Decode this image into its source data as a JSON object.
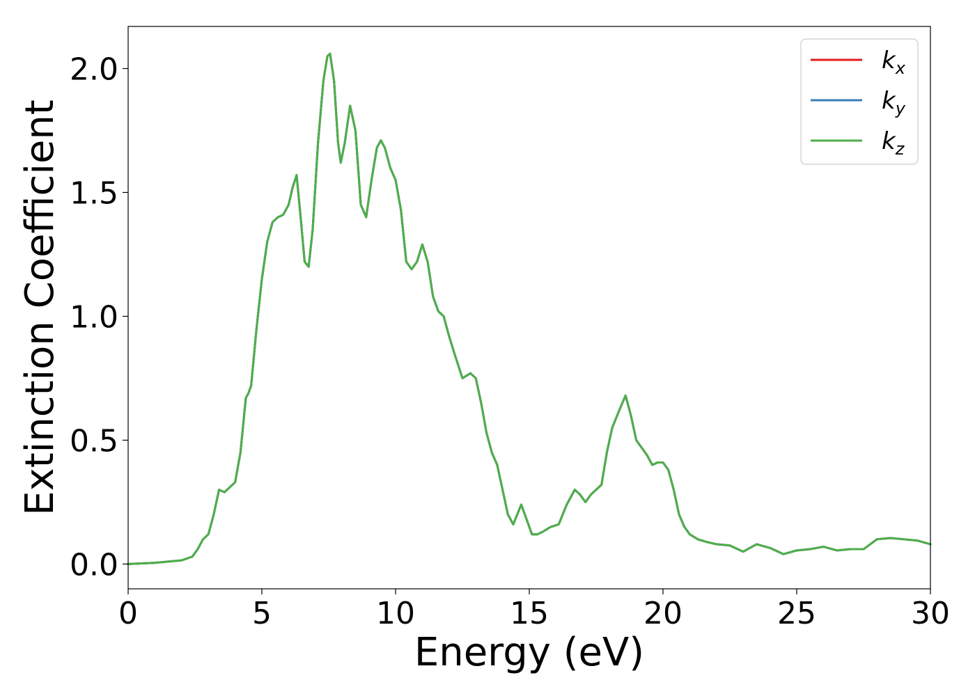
{
  "chart_data": {
    "type": "line",
    "title": "",
    "xlabel": "Energy (eV)",
    "ylabel": "Extinction Coefficient",
    "xlim": [
      0,
      30
    ],
    "ylim": [
      -0.1,
      2.17
    ],
    "xticks": [
      0,
      5,
      10,
      15,
      20,
      25,
      30
    ],
    "xtick_labels": [
      "0",
      "5",
      "10",
      "15",
      "20",
      "25",
      "30"
    ],
    "yticks": [
      0.0,
      0.5,
      1.0,
      1.5,
      2.0
    ],
    "ytick_labels": [
      "0.0",
      "0.5",
      "1.0",
      "1.5",
      "2.0"
    ],
    "grid": false,
    "legend_position": "top-right",
    "series": [
      {
        "name": "k_x",
        "label_base": "k",
        "label_sub": "x",
        "color": "#e41a1c",
        "x": [
          0,
          1,
          2,
          2.4,
          2.6,
          2.8,
          3.0,
          3.2,
          3.4,
          3.6,
          3.8,
          4.0,
          4.2,
          4.4,
          4.5,
          4.6,
          4.8,
          5.0,
          5.2,
          5.4,
          5.6,
          5.8,
          6.0,
          6.15,
          6.3,
          6.45,
          6.6,
          6.75,
          6.9,
          7.1,
          7.3,
          7.45,
          7.55,
          7.7,
          7.85,
          7.95,
          8.1,
          8.3,
          8.5,
          8.7,
          8.9,
          9.1,
          9.3,
          9.45,
          9.6,
          9.8,
          10.0,
          10.2,
          10.4,
          10.6,
          10.8,
          11.0,
          11.2,
          11.4,
          11.6,
          11.8,
          12.0,
          12.2,
          12.5,
          12.8,
          13.0,
          13.2,
          13.4,
          13.6,
          13.8,
          14.0,
          14.2,
          14.4,
          14.7,
          14.9,
          15.1,
          15.3,
          15.5,
          15.8,
          16.1,
          16.4,
          16.7,
          16.9,
          17.1,
          17.3,
          17.5,
          17.7,
          17.9,
          18.1,
          18.4,
          18.6,
          18.8,
          19.0,
          19.2,
          19.4,
          19.6,
          19.8,
          20.0,
          20.2,
          20.4,
          20.6,
          20.8,
          21.0,
          21.3,
          21.6,
          22.0,
          22.5,
          23.0,
          23.5,
          24.0,
          24.5,
          25.0,
          25.5,
          26.0,
          26.5,
          27.0,
          27.5,
          28.0,
          28.5,
          29.0,
          29.5,
          30.0
        ],
        "y": [
          0.0,
          0.005,
          0.015,
          0.03,
          0.06,
          0.1,
          0.12,
          0.2,
          0.3,
          0.29,
          0.31,
          0.33,
          0.45,
          0.67,
          0.69,
          0.72,
          0.95,
          1.15,
          1.3,
          1.38,
          1.4,
          1.41,
          1.45,
          1.52,
          1.57,
          1.4,
          1.22,
          1.2,
          1.35,
          1.7,
          1.95,
          2.05,
          2.06,
          1.95,
          1.7,
          1.62,
          1.7,
          1.85,
          1.75,
          1.45,
          1.4,
          1.55,
          1.68,
          1.71,
          1.68,
          1.6,
          1.55,
          1.43,
          1.22,
          1.19,
          1.22,
          1.29,
          1.22,
          1.08,
          1.02,
          1.0,
          0.92,
          0.85,
          0.75,
          0.77,
          0.75,
          0.65,
          0.53,
          0.45,
          0.4,
          0.3,
          0.2,
          0.16,
          0.24,
          0.18,
          0.12,
          0.12,
          0.13,
          0.15,
          0.16,
          0.24,
          0.3,
          0.28,
          0.25,
          0.28,
          0.3,
          0.32,
          0.45,
          0.55,
          0.63,
          0.68,
          0.6,
          0.5,
          0.47,
          0.44,
          0.4,
          0.41,
          0.41,
          0.38,
          0.3,
          0.2,
          0.15,
          0.12,
          0.1,
          0.09,
          0.08,
          0.075,
          0.05,
          0.08,
          0.065,
          0.04,
          0.055,
          0.06,
          0.07,
          0.055,
          0.06,
          0.06,
          0.1,
          0.105,
          0.1,
          0.095,
          0.08
        ]
      },
      {
        "name": "k_y",
        "label_base": "k",
        "label_sub": "y",
        "color": "#377eb8",
        "x": [
          0,
          1,
          2,
          2.4,
          2.6,
          2.8,
          3.0,
          3.2,
          3.4,
          3.6,
          3.8,
          4.0,
          4.2,
          4.4,
          4.5,
          4.6,
          4.8,
          5.0,
          5.2,
          5.4,
          5.6,
          5.8,
          6.0,
          6.15,
          6.3,
          6.45,
          6.6,
          6.75,
          6.9,
          7.1,
          7.3,
          7.45,
          7.55,
          7.7,
          7.85,
          7.95,
          8.1,
          8.3,
          8.5,
          8.7,
          8.9,
          9.1,
          9.3,
          9.45,
          9.6,
          9.8,
          10.0,
          10.2,
          10.4,
          10.6,
          10.8,
          11.0,
          11.2,
          11.4,
          11.6,
          11.8,
          12.0,
          12.2,
          12.5,
          12.8,
          13.0,
          13.2,
          13.4,
          13.6,
          13.8,
          14.0,
          14.2,
          14.4,
          14.7,
          14.9,
          15.1,
          15.3,
          15.5,
          15.8,
          16.1,
          16.4,
          16.7,
          16.9,
          17.1,
          17.3,
          17.5,
          17.7,
          17.9,
          18.1,
          18.4,
          18.6,
          18.8,
          19.0,
          19.2,
          19.4,
          19.6,
          19.8,
          20.0,
          20.2,
          20.4,
          20.6,
          20.8,
          21.0,
          21.3,
          21.6,
          22.0,
          22.5,
          23.0,
          23.5,
          24.0,
          24.5,
          25.0,
          25.5,
          26.0,
          26.5,
          27.0,
          27.5,
          28.0,
          28.5,
          29.0,
          29.5,
          30.0
        ],
        "y": [
          0.0,
          0.005,
          0.015,
          0.03,
          0.06,
          0.1,
          0.12,
          0.2,
          0.3,
          0.29,
          0.31,
          0.33,
          0.45,
          0.67,
          0.69,
          0.72,
          0.95,
          1.15,
          1.3,
          1.38,
          1.4,
          1.41,
          1.45,
          1.52,
          1.57,
          1.4,
          1.22,
          1.2,
          1.35,
          1.7,
          1.95,
          2.05,
          2.06,
          1.95,
          1.7,
          1.62,
          1.7,
          1.85,
          1.75,
          1.45,
          1.4,
          1.55,
          1.68,
          1.71,
          1.68,
          1.6,
          1.55,
          1.43,
          1.22,
          1.19,
          1.22,
          1.29,
          1.22,
          1.08,
          1.02,
          1.0,
          0.92,
          0.85,
          0.75,
          0.77,
          0.75,
          0.65,
          0.53,
          0.45,
          0.4,
          0.3,
          0.2,
          0.16,
          0.24,
          0.18,
          0.12,
          0.12,
          0.13,
          0.15,
          0.16,
          0.24,
          0.3,
          0.28,
          0.25,
          0.28,
          0.3,
          0.32,
          0.45,
          0.55,
          0.63,
          0.68,
          0.6,
          0.5,
          0.47,
          0.44,
          0.4,
          0.41,
          0.41,
          0.38,
          0.3,
          0.2,
          0.15,
          0.12,
          0.1,
          0.09,
          0.08,
          0.075,
          0.05,
          0.08,
          0.065,
          0.04,
          0.055,
          0.06,
          0.07,
          0.055,
          0.06,
          0.06,
          0.1,
          0.105,
          0.1,
          0.095,
          0.08
        ]
      },
      {
        "name": "k_z",
        "label_base": "k",
        "label_sub": "z",
        "color": "#4daf4a",
        "x": [
          0,
          1,
          2,
          2.4,
          2.6,
          2.8,
          3.0,
          3.2,
          3.4,
          3.6,
          3.8,
          4.0,
          4.2,
          4.4,
          4.5,
          4.6,
          4.8,
          5.0,
          5.2,
          5.4,
          5.6,
          5.8,
          6.0,
          6.15,
          6.3,
          6.45,
          6.6,
          6.75,
          6.9,
          7.1,
          7.3,
          7.45,
          7.55,
          7.7,
          7.85,
          7.95,
          8.1,
          8.3,
          8.5,
          8.7,
          8.9,
          9.1,
          9.3,
          9.45,
          9.6,
          9.8,
          10.0,
          10.2,
          10.4,
          10.6,
          10.8,
          11.0,
          11.2,
          11.4,
          11.6,
          11.8,
          12.0,
          12.2,
          12.5,
          12.8,
          13.0,
          13.2,
          13.4,
          13.6,
          13.8,
          14.0,
          14.2,
          14.4,
          14.7,
          14.9,
          15.1,
          15.3,
          15.5,
          15.8,
          16.1,
          16.4,
          16.7,
          16.9,
          17.1,
          17.3,
          17.5,
          17.7,
          17.9,
          18.1,
          18.4,
          18.6,
          18.8,
          19.0,
          19.2,
          19.4,
          19.6,
          19.8,
          20.0,
          20.2,
          20.4,
          20.6,
          20.8,
          21.0,
          21.3,
          21.6,
          22.0,
          22.5,
          23.0,
          23.5,
          24.0,
          24.5,
          25.0,
          25.5,
          26.0,
          26.5,
          27.0,
          27.5,
          28.0,
          28.5,
          29.0,
          29.5,
          30.0
        ],
        "y": [
          0.0,
          0.005,
          0.015,
          0.03,
          0.06,
          0.1,
          0.12,
          0.2,
          0.3,
          0.29,
          0.31,
          0.33,
          0.45,
          0.67,
          0.69,
          0.72,
          0.95,
          1.15,
          1.3,
          1.38,
          1.4,
          1.41,
          1.45,
          1.52,
          1.57,
          1.4,
          1.22,
          1.2,
          1.35,
          1.7,
          1.95,
          2.05,
          2.06,
          1.95,
          1.7,
          1.62,
          1.7,
          1.85,
          1.75,
          1.45,
          1.4,
          1.55,
          1.68,
          1.71,
          1.68,
          1.6,
          1.55,
          1.43,
          1.22,
          1.19,
          1.22,
          1.29,
          1.22,
          1.08,
          1.02,
          1.0,
          0.92,
          0.85,
          0.75,
          0.77,
          0.75,
          0.65,
          0.53,
          0.45,
          0.4,
          0.3,
          0.2,
          0.16,
          0.24,
          0.18,
          0.12,
          0.12,
          0.13,
          0.15,
          0.16,
          0.24,
          0.3,
          0.28,
          0.25,
          0.28,
          0.3,
          0.32,
          0.45,
          0.55,
          0.63,
          0.68,
          0.6,
          0.5,
          0.47,
          0.44,
          0.4,
          0.41,
          0.41,
          0.38,
          0.3,
          0.2,
          0.15,
          0.12,
          0.1,
          0.09,
          0.08,
          0.075,
          0.05,
          0.08,
          0.065,
          0.04,
          0.055,
          0.06,
          0.07,
          0.055,
          0.06,
          0.06,
          0.1,
          0.105,
          0.1,
          0.095,
          0.08
        ]
      }
    ]
  }
}
